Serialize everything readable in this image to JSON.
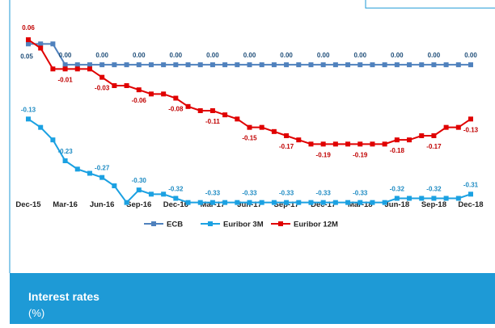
{
  "chart_data": {
    "type": "line",
    "caption": "Interest rates",
    "unit": "(%)",
    "categories": [
      "Dec-15",
      null,
      null,
      "Mar-16",
      null,
      null,
      "Jun-16",
      null,
      null,
      "Sep-16",
      null,
      null,
      "Dec-16",
      null,
      null,
      "Mar-17",
      null,
      null,
      "Jun-17",
      null,
      null,
      "Sep-17",
      null,
      null,
      "Dec-17",
      null,
      null,
      "Mar-18",
      null,
      null,
      "Jun-18",
      null,
      null,
      "Sep-18",
      null,
      null,
      "Dec-18"
    ],
    "ylim": [
      -0.35,
      0.07
    ],
    "legend": "bottom",
    "series": [
      {
        "name": "ECB",
        "color": "#4f81bd",
        "label_color": "#1f4e79",
        "values": [
          0.05,
          0.05,
          0.05,
          0,
          0,
          0,
          0,
          0,
          0,
          0,
          0,
          0,
          0,
          0,
          0,
          0,
          0,
          0,
          0,
          0,
          0,
          0,
          0,
          0,
          0,
          0,
          0,
          0,
          0,
          0,
          0,
          0,
          0,
          0,
          0,
          0,
          0
        ],
        "value_labels": [
          "0.05",
          null,
          null,
          "0.00",
          null,
          null,
          "0.00",
          null,
          null,
          "0.00",
          null,
          null,
          "0.00",
          null,
          null,
          "0.00",
          null,
          null,
          "0.00",
          null,
          null,
          "0.00",
          null,
          null,
          "0.00",
          null,
          null,
          "0.00",
          null,
          null,
          "0.00",
          null,
          null,
          "0.00",
          null,
          null,
          "0.00"
        ]
      },
      {
        "name": "Euribor 3M",
        "color": "#1ba1e2",
        "label_color": "#1e8bc3",
        "values": [
          -0.13,
          -0.15,
          -0.18,
          -0.23,
          -0.25,
          -0.26,
          -0.27,
          -0.29,
          -0.33,
          -0.3,
          -0.31,
          -0.31,
          -0.32,
          -0.33,
          -0.33,
          -0.33,
          -0.33,
          -0.33,
          -0.33,
          -0.33,
          -0.33,
          -0.33,
          -0.33,
          -0.33,
          -0.33,
          -0.33,
          -0.33,
          -0.33,
          -0.33,
          -0.33,
          -0.32,
          -0.32,
          -0.32,
          -0.32,
          -0.32,
          -0.32,
          -0.31
        ],
        "value_labels": [
          "-0.13",
          null,
          null,
          "-0.23",
          null,
          null,
          "-0.27",
          null,
          null,
          "-0.30",
          null,
          null,
          "-0.32",
          null,
          null,
          "-0.33",
          null,
          null,
          "-0.33",
          null,
          null,
          "-0.33",
          null,
          null,
          "-0.33",
          null,
          null,
          "-0.33",
          null,
          null,
          "-0.32",
          null,
          null,
          "-0.32",
          null,
          null,
          "-0.31"
        ]
      },
      {
        "name": "Euribor 12M",
        "color": "#e00000",
        "label_color": "#c00000",
        "values": [
          0.06,
          0.04,
          -0.01,
          -0.01,
          -0.01,
          -0.01,
          -0.03,
          -0.05,
          -0.05,
          -0.06,
          -0.07,
          -0.07,
          -0.08,
          -0.1,
          -0.11,
          -0.11,
          -0.12,
          -0.13,
          -0.15,
          -0.15,
          -0.16,
          -0.17,
          -0.18,
          -0.19,
          -0.19,
          -0.19,
          -0.19,
          -0.19,
          -0.19,
          -0.19,
          -0.18,
          -0.18,
          -0.17,
          -0.17,
          -0.15,
          -0.15,
          -0.13
        ],
        "value_labels": [
          "0.06",
          null,
          null,
          "-0.01",
          null,
          null,
          "-0.03",
          null,
          null,
          "-0.06",
          null,
          null,
          "-0.08",
          null,
          null,
          "-0.11",
          null,
          null,
          "-0.15",
          null,
          null,
          "-0.17",
          null,
          null,
          "-0.19",
          null,
          null,
          "-0.19",
          null,
          null,
          "-0.18",
          null,
          null,
          "-0.17",
          null,
          null,
          "-0.13"
        ]
      }
    ]
  }
}
